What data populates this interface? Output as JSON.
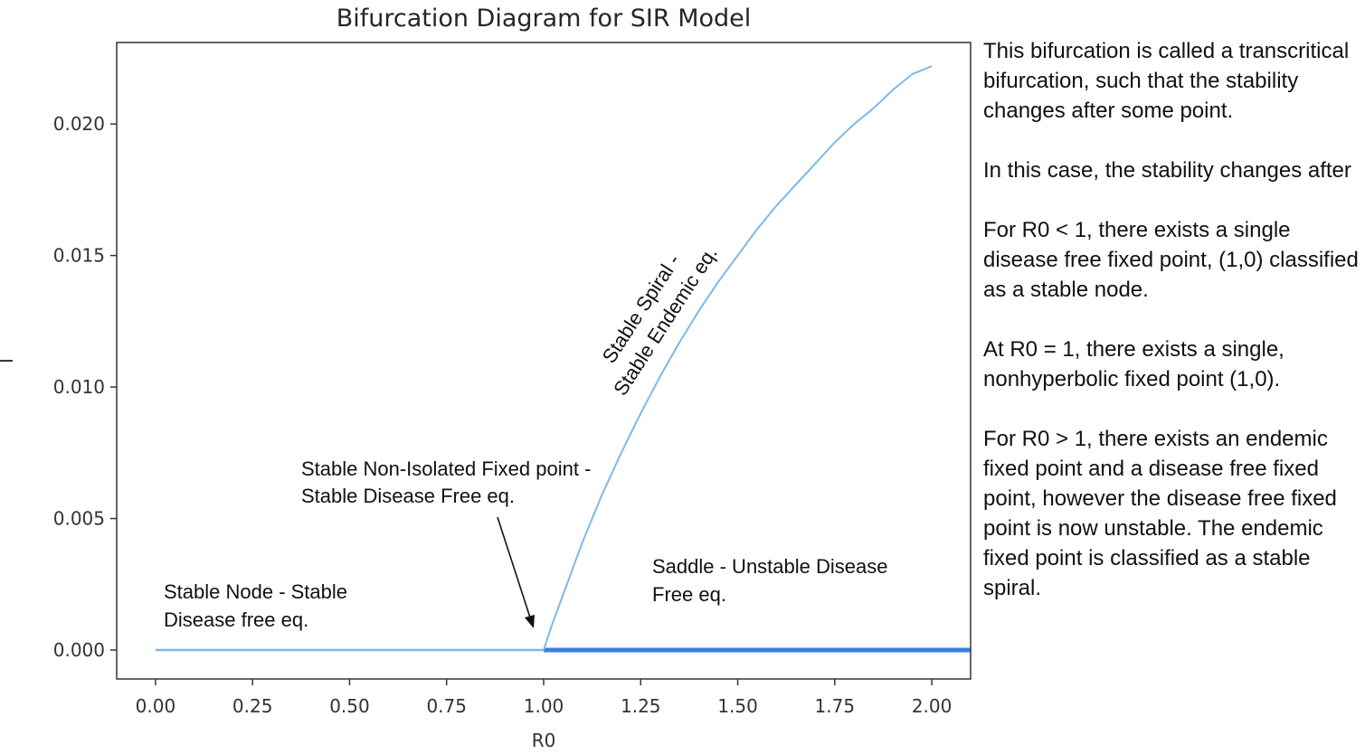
{
  "chart_data": {
    "type": "line",
    "title": "Bifurcation Diagram for SIR Model",
    "xlabel": "R0",
    "ylabel": "I",
    "xlim": [
      -0.1,
      2.1
    ],
    "ylim": [
      -0.0011,
      0.0231
    ],
    "x_ticks": [
      0.0,
      0.25,
      0.5,
      0.75,
      1.0,
      1.25,
      1.5,
      1.75,
      2.0
    ],
    "x_tick_labels": [
      "0.00",
      "0.25",
      "0.50",
      "0.75",
      "1.00",
      "1.25",
      "1.50",
      "1.75",
      "2.00"
    ],
    "y_ticks": [
      0.0,
      0.005,
      0.01,
      0.015,
      0.02
    ],
    "y_tick_labels": [
      "0.000",
      "0.005",
      "0.010",
      "0.015",
      "0.020"
    ],
    "grid": false,
    "series": [
      {
        "color": "#7fb8e8",
        "x": [
          0.0,
          1.0
        ],
        "y": [
          0.0,
          0.0
        ]
      },
      {
        "color": "#3b7fe0",
        "x": [
          1.0,
          2.1
        ],
        "y": [
          0.0,
          0.0
        ]
      },
      {
        "color": "#7fb8e8",
        "x": [
          1.0,
          1.02,
          1.05,
          1.1,
          1.15,
          1.2,
          1.25,
          1.3,
          1.35,
          1.4,
          1.45,
          1.5,
          1.55,
          1.6,
          1.65,
          1.7,
          1.75,
          1.8,
          1.85,
          1.9,
          1.95,
          2.0
        ],
        "y": [
          0.0,
          0.0009,
          0.0021,
          0.0041,
          0.0059,
          0.0075,
          0.009,
          0.0104,
          0.0117,
          0.0129,
          0.014,
          0.015,
          0.016,
          0.0169,
          0.0177,
          0.0185,
          0.0193,
          0.02,
          0.0206,
          0.0213,
          0.0219,
          0.0222
        ]
      }
    ],
    "annotations": [
      {
        "id": "stable-node",
        "lines": [
          "Stable Node - Stable",
          "Disease free eq."
        ]
      },
      {
        "id": "non-isolated",
        "lines": [
          "Stable Non-Isolated Fixed point -",
          "Stable Disease Free eq."
        ],
        "arrow_to": [
          0.97,
          0.0007
        ]
      },
      {
        "id": "saddle",
        "lines": [
          "Saddle - Unstable Disease",
          "Free eq."
        ]
      },
      {
        "id": "spiral",
        "lines": [
          "Stable Spiral -",
          "Stable Endemic eq."
        ]
      }
    ]
  },
  "side_text": {
    "p1": "This bifurcation is called a transcritical bifurcation, such that the stability changes after some point.",
    "p2": "In this case, the stability changes after",
    "p3": "For R0 < 1, there exists a single disease free fixed point, (1,0) classified as a stable node.",
    "p4": "At R0 = 1, there exists a single, nonhyperbolic fixed point (1,0).",
    "p5": "For R0 > 1, there exists an endemic fixed point and a disease free fixed point, however the disease free fixed point is now unstable. The endemic fixed point is classified as a stable spiral."
  }
}
